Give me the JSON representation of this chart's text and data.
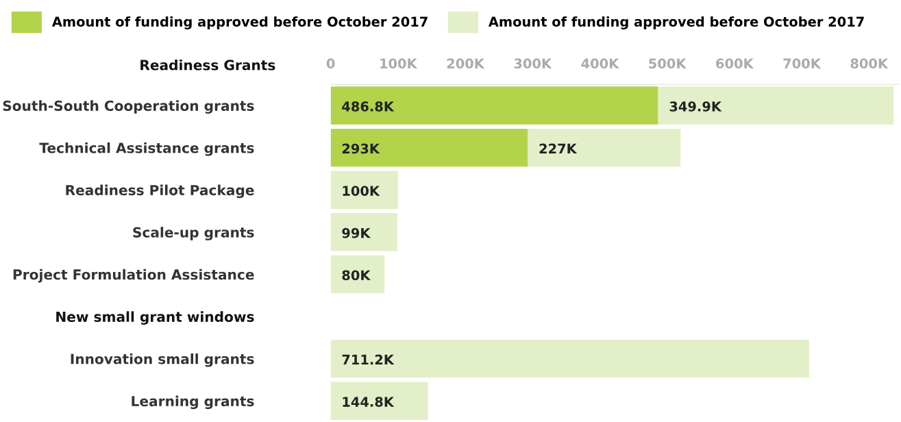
{
  "chart_data": {
    "type": "bar",
    "orientation": "horizontal",
    "stacked": true,
    "categories": [
      "South-South Cooperation grants",
      "Technical Assistance grants",
      "Readiness Pilot Package",
      "Scale-up grants",
      "Project Formulation Assistance",
      "New small grant windows",
      "Innovation small grants",
      "Learning grants"
    ],
    "series": [
      {
        "name": "Amount of funding approved before October 2017",
        "color": "#b3d44a",
        "values": [
          486.8,
          293,
          null,
          null,
          null,
          null,
          null,
          null
        ],
        "value_labels": [
          "486.8K",
          "293K",
          null,
          null,
          null,
          null,
          null,
          null
        ]
      },
      {
        "name": "Amount of funding approved before October 2017",
        "color": "#e3efc8",
        "values": [
          349.9,
          227,
          100,
          99,
          80,
          null,
          711.2,
          144.8
        ],
        "value_labels": [
          "349.9K",
          "227K",
          "100K",
          "99K",
          "80K",
          null,
          "711.2K",
          "144.8K"
        ]
      }
    ],
    "xlim": [
      0,
      845
    ],
    "xticks": [
      0,
      {
        "value": 100,
        "label": "100K"
      },
      {
        "value": 200,
        "label": "200K"
      },
      {
        "value": 300,
        "label": "300K"
      },
      {
        "value": 400,
        "label": "400K"
      },
      {
        "value": 500,
        "label": "500K"
      },
      {
        "value": 600,
        "label": "600K"
      },
      {
        "value": 700,
        "label": "700K"
      },
      {
        "value": 800,
        "label": "800K"
      }
    ],
    "annotations": [
      "Readiness Grants"
    ],
    "legend": "top left",
    "grid": false
  }
}
